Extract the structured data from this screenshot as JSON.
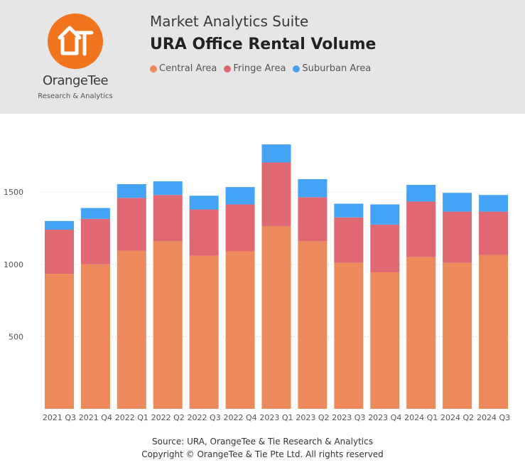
{
  "header": {
    "suite_title": "Market Analytics Suite",
    "chart_title": "URA Office Rental Volume",
    "logo": {
      "name": "OrangeTee",
      "subtitle": "Research & Analytics",
      "color": "#f0731e"
    }
  },
  "legend": [
    {
      "label": "Central Area",
      "color": "#ec8a5c"
    },
    {
      "label": "Fringe Area",
      "color": "#df6872"
    },
    {
      "label": "Suburban Area",
      "color": "#45a3f5"
    }
  ],
  "footer": {
    "source": "Source: URA, OrangeTee & Tie Research & Analytics",
    "copyright": "Copyright © OrangeTee & Tie Pte Ltd. All rights reserved"
  },
  "chart_data": {
    "type": "bar",
    "stacked": true,
    "categories": [
      "2021 Q3",
      "2021 Q4",
      "2022 Q1",
      "2022 Q2",
      "2022 Q3",
      "2022 Q4",
      "2023 Q1",
      "2023 Q2",
      "2023 Q3",
      "2023 Q4",
      "2024 Q1",
      "2024 Q2",
      "2024 Q3"
    ],
    "series": [
      {
        "name": "Central Area",
        "color": "#ec8a5c",
        "values": [
          935,
          1000,
          1095,
          1160,
          1060,
          1090,
          1265,
          1160,
          1010,
          945,
          1050,
          1010,
          1065
        ]
      },
      {
        "name": "Fringe Area",
        "color": "#df6872",
        "values": [
          305,
          315,
          365,
          320,
          320,
          325,
          440,
          305,
          315,
          330,
          385,
          355,
          300
        ]
      },
      {
        "name": "Suburban Area",
        "color": "#45a3f5",
        "values": [
          60,
          75,
          95,
          95,
          95,
          120,
          125,
          125,
          95,
          140,
          115,
          130,
          115
        ]
      }
    ],
    "y_ticks": [
      500,
      1000,
      1500
    ],
    "ylim": [
      0,
      1900
    ],
    "grid": true,
    "legend_position": "top-left"
  }
}
